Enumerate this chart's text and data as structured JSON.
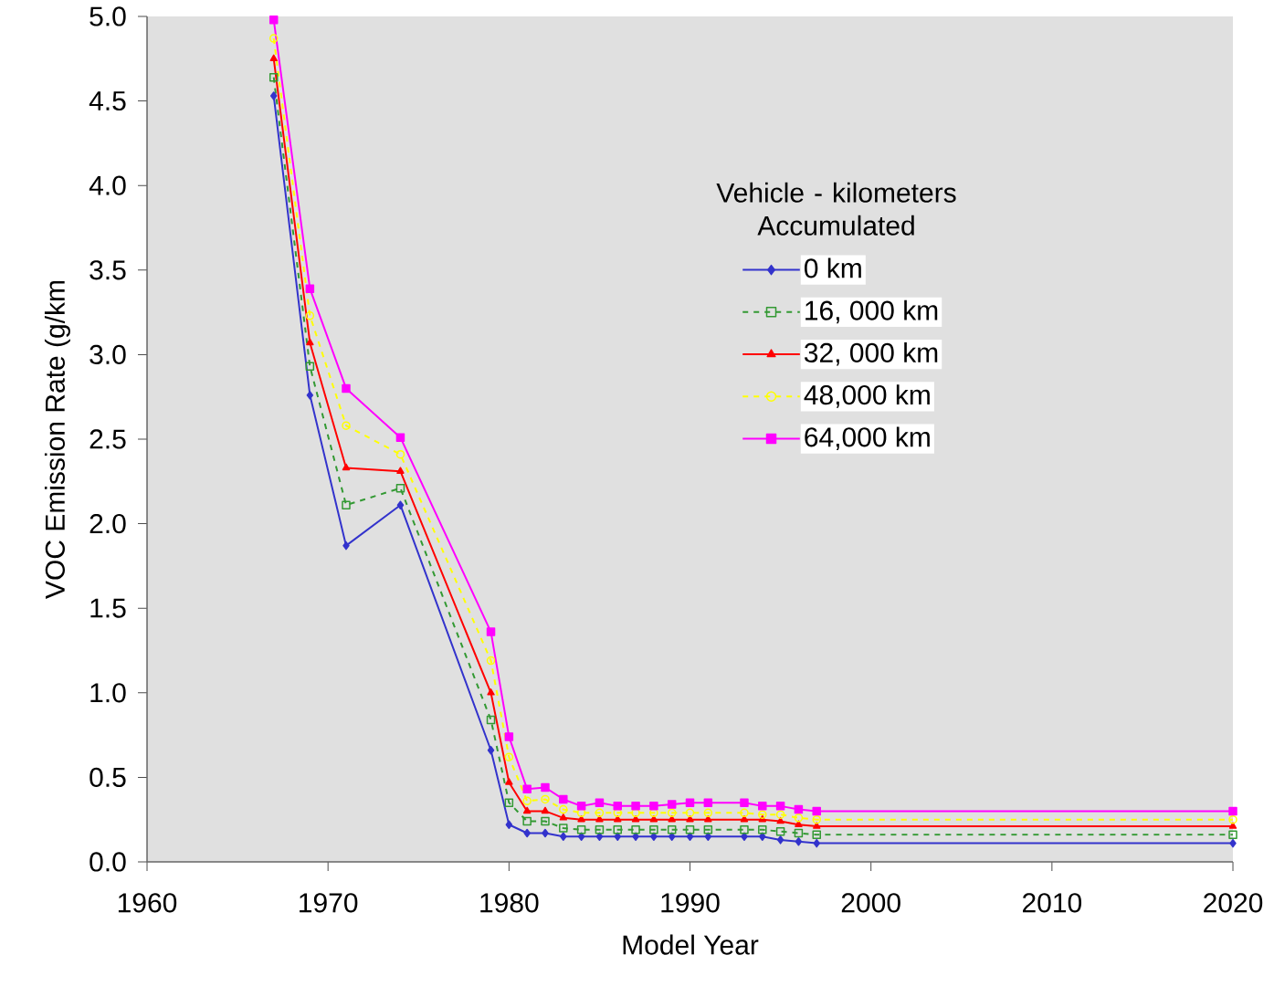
{
  "chart_data": {
    "type": "line",
    "xlabel": "Model Year",
    "ylabel": "VOC Emission Rate  (g/km",
    "legend_title": "Vehicle - kilometers Accumulated",
    "xlim": [
      1960,
      2020
    ],
    "xticks": [
      1960,
      1970,
      1980,
      1990,
      2000,
      2010,
      2020
    ],
    "ylim": [
      0,
      5
    ],
    "yticks": [
      {
        "value": 0,
        "label": "0.0"
      },
      {
        "value": 0.5,
        "label": "0.5"
      },
      {
        "value": 1,
        "label": "1.0"
      },
      {
        "value": 1.5,
        "label": "1.5"
      },
      {
        "value": 2,
        "label": "2.0"
      },
      {
        "value": 2.5,
        "label": "2.5"
      },
      {
        "value": 3,
        "label": "3.0"
      },
      {
        "value": 3.5,
        "label": "3.5"
      },
      {
        "value": 4,
        "label": "4.0"
      },
      {
        "value": 4.5,
        "label": "4.5"
      },
      {
        "value": 5,
        "label": "5.0"
      }
    ],
    "grid": false,
    "legend": "right",
    "x": [
      1967,
      1969,
      1971,
      1974,
      1979,
      1980,
      1981,
      1982,
      1983,
      1984,
      1985,
      1986,
      1987,
      1988,
      1989,
      1990,
      1991,
      1993,
      1994,
      1995,
      1996,
      1997,
      2020
    ],
    "series": [
      {
        "name": "0 km",
        "color": "#3333cc",
        "marker": "diamond",
        "line_style": "solid",
        "values": [
          4.53,
          2.76,
          1.87,
          2.11,
          0.66,
          0.22,
          0.17,
          0.17,
          0.15,
          0.15,
          0.15,
          0.15,
          0.15,
          0.15,
          0.15,
          0.15,
          0.15,
          0.15,
          0.15,
          0.13,
          0.12,
          0.11,
          0.11
        ]
      },
      {
        "name": "16, 000 km",
        "color": "#339933",
        "marker": "square",
        "line_style": "dashed",
        "values": [
          4.64,
          2.93,
          2.11,
          2.21,
          0.84,
          0.35,
          0.24,
          0.24,
          0.2,
          0.19,
          0.19,
          0.19,
          0.19,
          0.19,
          0.19,
          0.19,
          0.19,
          0.19,
          0.19,
          0.18,
          0.17,
          0.16,
          0.16
        ]
      },
      {
        "name": "32, 000 km",
        "color": "#ff0000",
        "marker": "triangle",
        "line_style": "solid",
        "values": [
          4.75,
          3.07,
          2.33,
          2.31,
          1.0,
          0.47,
          0.3,
          0.3,
          0.26,
          0.25,
          0.25,
          0.25,
          0.25,
          0.25,
          0.25,
          0.25,
          0.25,
          0.25,
          0.25,
          0.24,
          0.22,
          0.21,
          0.21
        ]
      },
      {
        "name": "48,000 km",
        "color": "#ffff00",
        "marker": "circle",
        "line_style": "dashed",
        "values": [
          4.87,
          3.23,
          2.58,
          2.41,
          1.19,
          0.62,
          0.36,
          0.37,
          0.31,
          0.29,
          0.29,
          0.29,
          0.29,
          0.29,
          0.29,
          0.29,
          0.29,
          0.29,
          0.28,
          0.28,
          0.26,
          0.25,
          0.25
        ]
      },
      {
        "name": "64,000 km",
        "color": "#ff00ff",
        "marker": "square*",
        "line_style": "solid",
        "values": [
          4.98,
          3.39,
          2.8,
          2.51,
          1.36,
          0.74,
          0.43,
          0.44,
          0.37,
          0.33,
          0.35,
          0.33,
          0.33,
          0.33,
          0.34,
          0.35,
          0.35,
          0.35,
          0.33,
          0.33,
          0.31,
          0.3,
          0.3
        ]
      }
    ]
  }
}
